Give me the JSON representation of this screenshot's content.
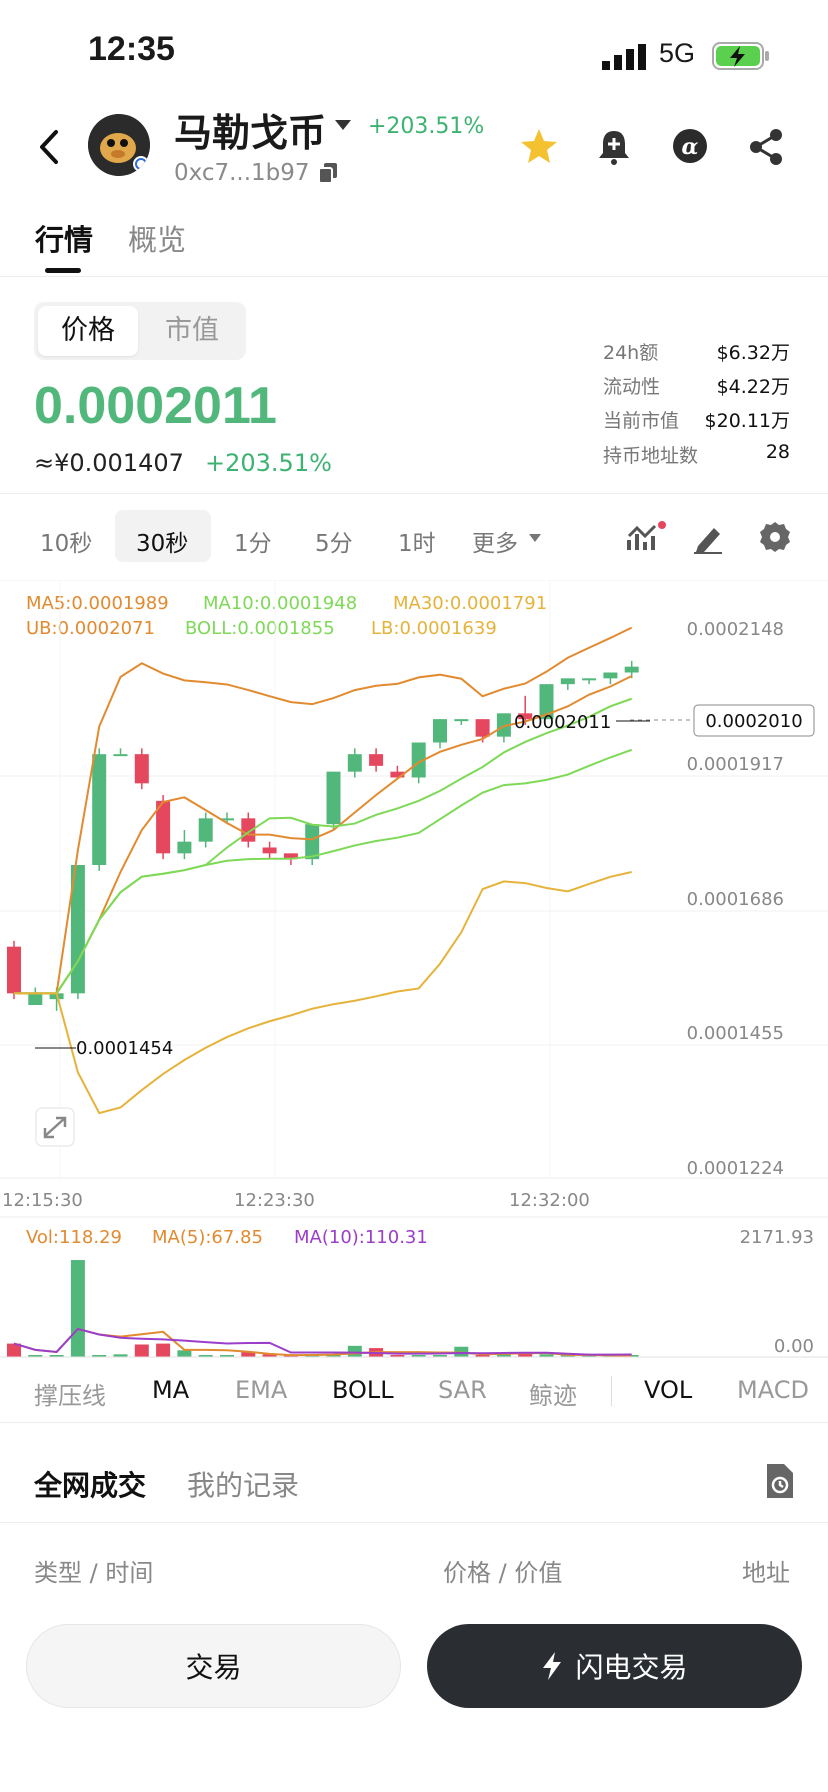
{
  "status_bar": {
    "time": "12:35",
    "network": "5G"
  },
  "header": {
    "token_name": "马勒戈币",
    "change": "+203.51%",
    "address": "0xc7...1b97",
    "icons": [
      "back-arrow-icon",
      "star-icon",
      "bell-plus-icon",
      "alpha-icon",
      "share-icon",
      "copy-icon",
      "dropdown-caret-icon"
    ]
  },
  "tabs": [
    {
      "label": "行情",
      "active": true
    },
    {
      "label": "概览",
      "active": false
    }
  ],
  "price_toggle": {
    "price_label": "价格",
    "mcap_label": "市值"
  },
  "price": {
    "value": "0.0002011",
    "cny": "≈¥0.001407",
    "change": "+203.51%"
  },
  "stats": [
    {
      "label": "24h额",
      "value": "$6.32万"
    },
    {
      "label": "流动性",
      "value": "$4.22万"
    },
    {
      "label": "当前市值",
      "value": "$20.11万"
    },
    {
      "label": "持币地址数",
      "value": "28"
    }
  ],
  "timeframes": {
    "items": [
      "10秒",
      "30秒",
      "1分",
      "5分",
      "1时"
    ],
    "more": "更多",
    "active": "30秒"
  },
  "chart_data": {
    "type": "candlestick",
    "indicators": {
      "ma5": "MA5:0.0001989",
      "ma10": "MA10:0.0001948",
      "ma30": "MA30:0.0001791",
      "ub": "UB:0.0002071",
      "boll": "BOLL:0.0001855",
      "lb": "LB:0.0001639"
    },
    "y_ticks": [
      "0.0002148",
      "0.0001917",
      "0.0001686",
      "0.0001455",
      "0.0001224"
    ],
    "y_range": [
      0.0001224,
      0.0002148
    ],
    "x_ticks": [
      "12:15:30",
      "12:23:30",
      "12:32:00"
    ],
    "last_price_label": "0.0002010",
    "high_marker": "0.0002011",
    "low_marker": "0.0001454",
    "candles": [
      {
        "o": 0.00016,
        "c": 0.000152,
        "h": 0.000161,
        "l": 0.000151
      },
      {
        "o": 0.00015,
        "c": 0.000152,
        "h": 0.000153,
        "l": 0.00015
      },
      {
        "o": 0.000151,
        "c": 0.000152,
        "h": 0.000153,
        "l": 0.000149
      },
      {
        "o": 0.000152,
        "c": 0.000174,
        "h": 0.000174,
        "l": 0.000151
      },
      {
        "o": 0.000174,
        "c": 0.000193,
        "h": 0.000194,
        "l": 0.000173
      },
      {
        "o": 0.000193,
        "c": 0.000193,
        "h": 0.000194,
        "l": 0.000193
      },
      {
        "o": 0.000193,
        "c": 0.000188,
        "h": 0.000194,
        "l": 0.000187
      },
      {
        "o": 0.000185,
        "c": 0.000176,
        "h": 0.000186,
        "l": 0.000175
      },
      {
        "o": 0.000176,
        "c": 0.000178,
        "h": 0.00018,
        "l": 0.000175
      },
      {
        "o": 0.000178,
        "c": 0.000182,
        "h": 0.000183,
        "l": 0.000177
      },
      {
        "o": 0.000182,
        "c": 0.000182,
        "h": 0.000183,
        "l": 0.000181
      },
      {
        "o": 0.000182,
        "c": 0.000178,
        "h": 0.000183,
        "l": 0.000177
      },
      {
        "o": 0.000177,
        "c": 0.000176,
        "h": 0.000178,
        "l": 0.000175
      },
      {
        "o": 0.000176,
        "c": 0.000175,
        "h": 0.000176,
        "l": 0.000174
      },
      {
        "o": 0.000175,
        "c": 0.000181,
        "h": 0.000181,
        "l": 0.000174
      },
      {
        "o": 0.000181,
        "c": 0.00019,
        "h": 0.00019,
        "l": 0.00018
      },
      {
        "o": 0.00019,
        "c": 0.000193,
        "h": 0.000194,
        "l": 0.000189
      },
      {
        "o": 0.000193,
        "c": 0.000191,
        "h": 0.000194,
        "l": 0.00019
      },
      {
        "o": 0.00019,
        "c": 0.000189,
        "h": 0.000191,
        "l": 0.000189
      },
      {
        "o": 0.000189,
        "c": 0.000195,
        "h": 0.000195,
        "l": 0.000188
      },
      {
        "o": 0.000195,
        "c": 0.000199,
        "h": 0.000199,
        "l": 0.000194
      },
      {
        "o": 0.000199,
        "c": 0.000199,
        "h": 0.000199,
        "l": 0.000198
      },
      {
        "o": 0.000199,
        "c": 0.000196,
        "h": 0.000199,
        "l": 0.000195
      },
      {
        "o": 0.000196,
        "c": 0.0002,
        "h": 0.0002,
        "l": 0.000195
      },
      {
        "o": 0.0002,
        "c": 0.000199,
        "h": 0.000203,
        "l": 0.000198
      },
      {
        "o": 0.000199,
        "c": 0.000205,
        "h": 0.000205,
        "l": 0.000199
      },
      {
        "o": 0.000205,
        "c": 0.000206,
        "h": 0.000206,
        "l": 0.000204
      },
      {
        "o": 0.000206,
        "c": 0.000206,
        "h": 0.000206,
        "l": 0.000205
      },
      {
        "o": 0.000206,
        "c": 0.000207,
        "h": 0.000207,
        "l": 0.000205
      },
      {
        "o": 0.000207,
        "c": 0.000208,
        "h": 0.000209,
        "l": 0.000206
      }
    ],
    "volume": {
      "vol_label": "Vol:118.29",
      "ma5_label": "MA(5):67.85",
      "ma10_label": "MA(10):110.31",
      "y_ticks": [
        "2171.93",
        "0.00"
      ],
      "values": [
        300,
        20,
        20,
        2171,
        10,
        60,
        280,
        300,
        150,
        10,
        10,
        120,
        60,
        10,
        20,
        60,
        250,
        200,
        20,
        10,
        30,
        230,
        20,
        60,
        80,
        60,
        20,
        10,
        10,
        40
      ]
    }
  },
  "indicator_tabs": {
    "items": [
      "撑压线",
      "MA",
      "EMA",
      "BOLL",
      "SAR",
      "鲸迹",
      "VOL",
      "MACD"
    ],
    "active": [
      "MA",
      "BOLL",
      "VOL"
    ]
  },
  "trades": {
    "tab_all": "全网成交",
    "tab_mine": "我的记录",
    "col_type": "类型 / 时间",
    "col_price": "价格 / 价值",
    "col_addr": "地址"
  },
  "actions": {
    "trade": "交易",
    "flash_trade": "闪电交易"
  },
  "colors": {
    "up": "#52b77b",
    "down": "#e5475f",
    "ma5": "#e28a2f",
    "ma10": "#7ed957",
    "ma30": "#e6b33a",
    "vol_ma10": "#9b3ec9"
  }
}
